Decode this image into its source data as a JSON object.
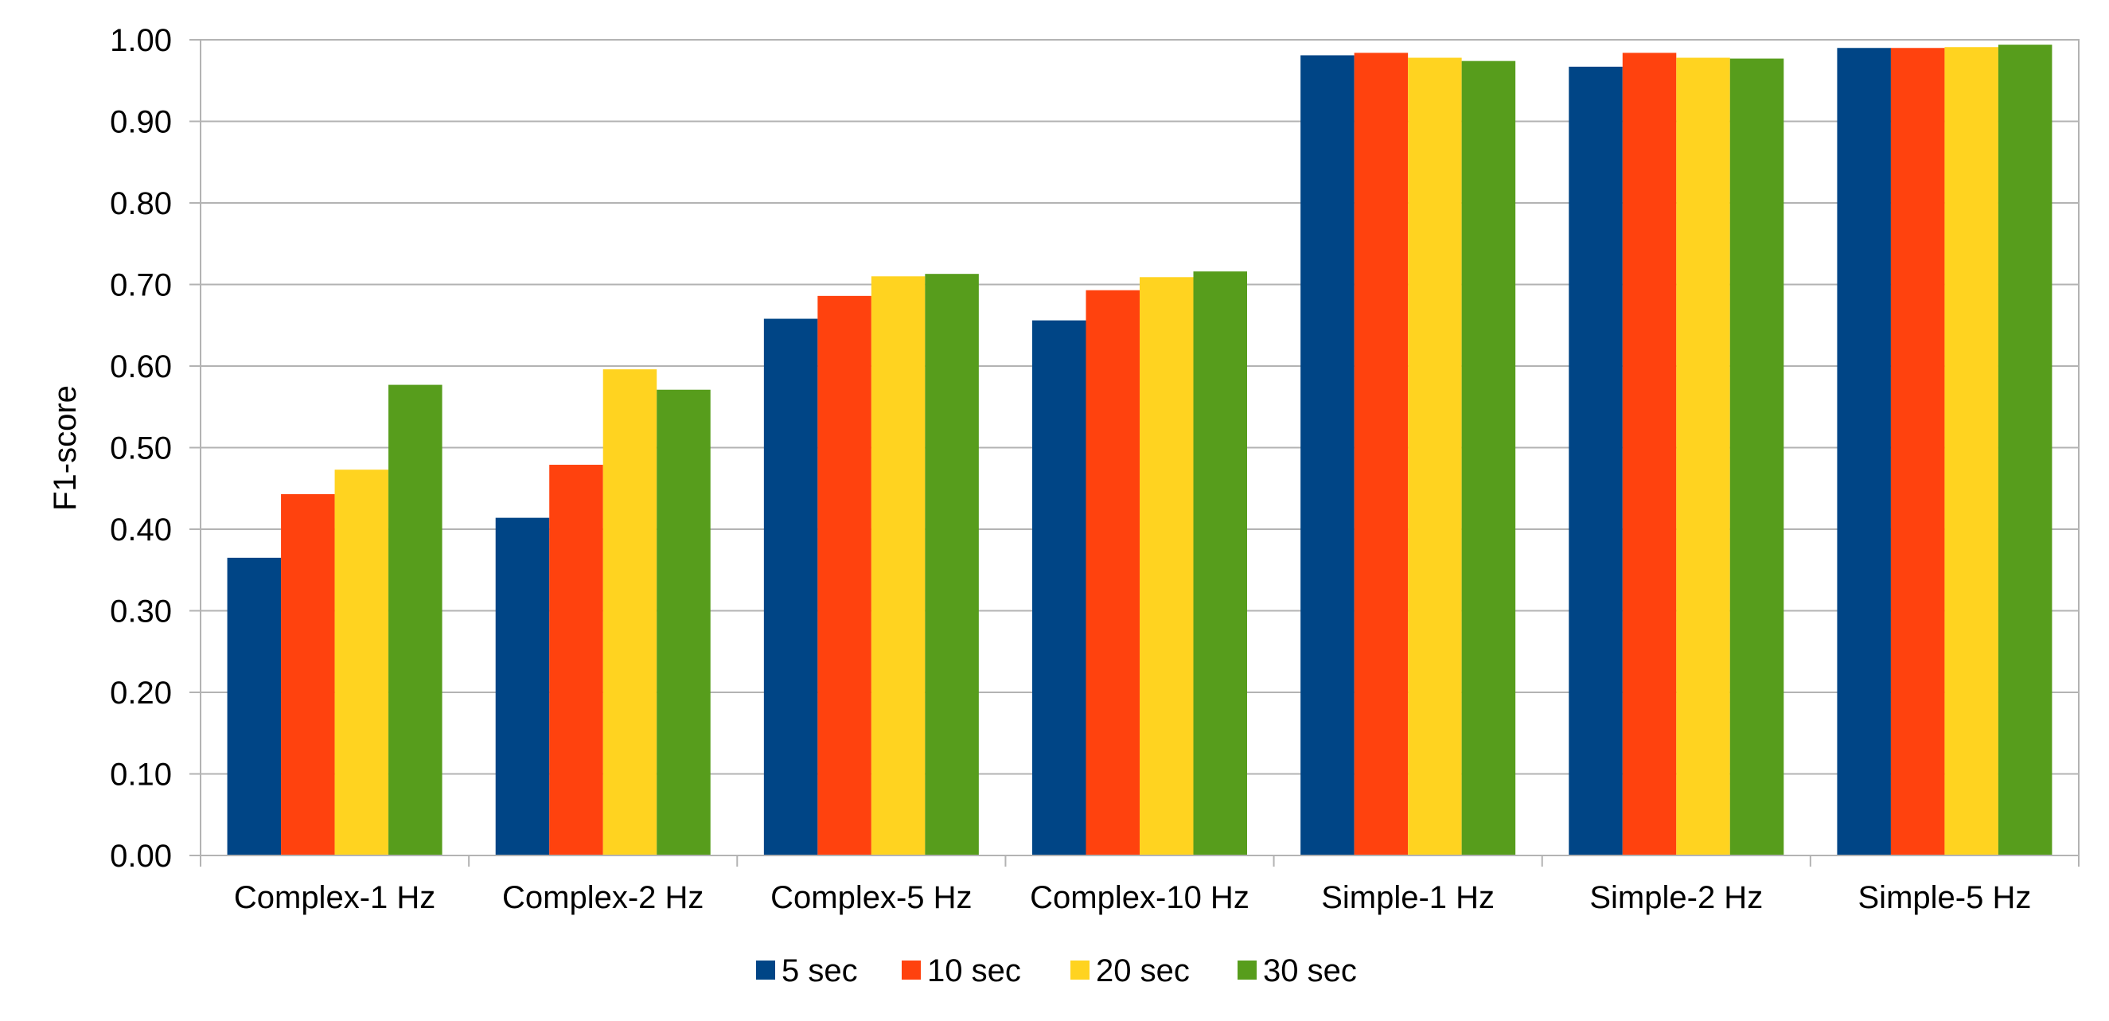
{
  "chart_data": {
    "type": "bar",
    "ylabel": "F1-score",
    "xlabel": "",
    "ylim": [
      0,
      1
    ],
    "grid": true,
    "legend_position": "bottom",
    "y_ticks": [
      "0.00",
      "0.10",
      "0.20",
      "0.30",
      "0.40",
      "0.50",
      "0.60",
      "0.70",
      "0.80",
      "0.90",
      "1.00"
    ],
    "categories": [
      "Complex-1 Hz",
      "Complex-2 Hz",
      "Complex-5 Hz",
      "Complex-10 Hz",
      "Simple-1 Hz",
      "Simple-2 Hz",
      "Simple-5 Hz"
    ],
    "series": [
      {
        "name": "5 sec",
        "color": "#004586",
        "values": [
          0.365,
          0.414,
          0.658,
          0.656,
          0.981,
          0.967,
          0.99
        ]
      },
      {
        "name": "10 sec",
        "color": "#ff420e",
        "values": [
          0.443,
          0.479,
          0.686,
          0.693,
          0.984,
          0.984,
          0.99
        ]
      },
      {
        "name": "20 sec",
        "color": "#ffd320",
        "values": [
          0.473,
          0.596,
          0.71,
          0.709,
          0.978,
          0.978,
          0.991
        ]
      },
      {
        "name": "30 sec",
        "color": "#579d1c",
        "values": [
          0.577,
          0.571,
          0.713,
          0.716,
          0.974,
          0.977,
          0.994
        ]
      }
    ]
  }
}
